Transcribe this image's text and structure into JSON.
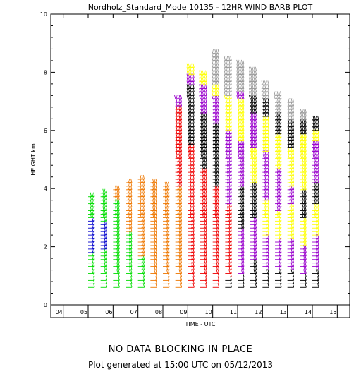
{
  "chart_data": {
    "type": "scatter",
    "title": "Nordholz_Standard_Mode 10135 - 12HR WIND BARB PLOT",
    "xlabel": "TIME - UTC",
    "ylabel": "HEIGHT km",
    "xlim": [
      3.5,
      15.5
    ],
    "ylim": [
      0,
      10
    ],
    "x_ticks": [
      "04",
      "05",
      "06",
      "07",
      "08",
      "09",
      "10",
      "11",
      "12",
      "13",
      "14",
      "15"
    ],
    "y_ticks": [
      "0",
      "2",
      "4",
      "6",
      "8",
      "10"
    ],
    "colors": {
      "green": "#00dd00",
      "blue": "#0000cc",
      "orange": "#ee7700",
      "red": "#ee0000",
      "black": "#000000",
      "purple": "#9900cc",
      "yellow": "#ffff00",
      "gray": "#999999"
    },
    "profiles": [
      {
        "t": 5.0,
        "bottom": 0.6,
        "top": 3.8,
        "color_bands": [
          [
            0.6,
            "green"
          ],
          [
            1.8,
            "blue"
          ],
          [
            3.0,
            "green"
          ]
        ]
      },
      {
        "t": 5.5,
        "bottom": 0.6,
        "top": 3.9,
        "color_bands": [
          [
            0.6,
            "green"
          ],
          [
            1.9,
            "blue"
          ],
          [
            2.8,
            "green"
          ]
        ]
      },
      {
        "t": 6.0,
        "bottom": 0.6,
        "top": 4.0,
        "color_bands": [
          [
            0.6,
            "green"
          ],
          [
            3.5,
            "orange"
          ]
        ]
      },
      {
        "t": 6.5,
        "bottom": 0.6,
        "top": 4.3,
        "color_bands": [
          [
            0.6,
            "green"
          ],
          [
            2.5,
            "orange"
          ]
        ]
      },
      {
        "t": 7.0,
        "bottom": 0.6,
        "top": 4.4,
        "color_bands": [
          [
            0.6,
            "green"
          ],
          [
            1.6,
            "orange"
          ]
        ]
      },
      {
        "t": 7.5,
        "bottom": 0.6,
        "top": 4.2,
        "color_bands": [
          [
            0.6,
            "orange"
          ]
        ]
      },
      {
        "t": 8.0,
        "bottom": 0.6,
        "top": 4.1,
        "color_bands": [
          [
            0.6,
            "orange"
          ]
        ]
      },
      {
        "t": 8.5,
        "bottom": 0.6,
        "top": 7.1,
        "color_bands": [
          [
            0.6,
            "orange"
          ],
          [
            4.0,
            "red"
          ],
          [
            6.8,
            "purple"
          ]
        ]
      },
      {
        "t": 9.0,
        "bottom": 0.6,
        "top": 8.2,
        "color_bands": [
          [
            0.6,
            "red"
          ],
          [
            5.5,
            "black"
          ],
          [
            7.5,
            "purple"
          ],
          [
            7.9,
            "yellow"
          ]
        ]
      },
      {
        "t": 9.5,
        "bottom": 0.6,
        "top": 8.0,
        "color_bands": [
          [
            0.6,
            "red"
          ],
          [
            4.6,
            "black"
          ],
          [
            6.6,
            "purple"
          ],
          [
            7.5,
            "yellow"
          ]
        ]
      },
      {
        "t": 10.0,
        "bottom": 0.6,
        "top": 8.7,
        "color_bands": [
          [
            0.6,
            "red"
          ],
          [
            4.0,
            "black"
          ],
          [
            6.2,
            "purple"
          ],
          [
            7.2,
            "yellow"
          ],
          [
            7.5,
            "gray"
          ]
        ]
      },
      {
        "t": 10.5,
        "bottom": 0.6,
        "top": 8.5,
        "color_bands": [
          [
            0.6,
            "black"
          ],
          [
            0.9,
            "red"
          ],
          [
            3.4,
            "purple"
          ],
          [
            6.0,
            "yellow"
          ],
          [
            7.1,
            "gray"
          ]
        ]
      },
      {
        "t": 11.0,
        "bottom": 0.6,
        "top": 8.3,
        "color_bands": [
          [
            0.6,
            "black"
          ],
          [
            1.0,
            "purple"
          ],
          [
            2.6,
            "black"
          ],
          [
            4.0,
            "purple"
          ],
          [
            5.6,
            "yellow"
          ],
          [
            7.0,
            "purple"
          ],
          [
            7.3,
            "gray"
          ]
        ]
      },
      {
        "t": 11.5,
        "bottom": 0.6,
        "top": 8.1,
        "color_bands": [
          [
            0.6,
            "black"
          ],
          [
            1.5,
            "purple"
          ],
          [
            3.0,
            "black"
          ],
          [
            4.1,
            "yellow"
          ],
          [
            5.3,
            "purple"
          ],
          [
            6.6,
            "black"
          ],
          [
            7.2,
            "gray"
          ]
        ]
      },
      {
        "t": 12.0,
        "bottom": 0.6,
        "top": 7.6,
        "color_bands": [
          [
            0.6,
            "black"
          ],
          [
            1.2,
            "purple"
          ],
          [
            2.4,
            "yellow"
          ],
          [
            3.6,
            "purple"
          ],
          [
            5.2,
            "yellow"
          ],
          [
            6.4,
            "black"
          ],
          [
            7.0,
            "gray"
          ]
        ]
      },
      {
        "t": 12.5,
        "bottom": 0.6,
        "top": 7.3,
        "color_bands": [
          [
            0.6,
            "black"
          ],
          [
            1.2,
            "purple"
          ],
          [
            2.2,
            "yellow"
          ],
          [
            3.2,
            "purple"
          ],
          [
            4.6,
            "yellow"
          ],
          [
            5.8,
            "black"
          ],
          [
            6.6,
            "gray"
          ]
        ]
      },
      {
        "t": 13.0,
        "bottom": 0.6,
        "top": 7.0,
        "color_bands": [
          [
            0.6,
            "black"
          ],
          [
            1.1,
            "purple"
          ],
          [
            2.2,
            "yellow"
          ],
          [
            3.4,
            "purple"
          ],
          [
            4.0,
            "yellow"
          ],
          [
            5.4,
            "black"
          ],
          [
            6.3,
            "gray"
          ]
        ]
      },
      {
        "t": 13.5,
        "bottom": 0.6,
        "top": 6.6,
        "color_bands": [
          [
            0.6,
            "black"
          ],
          [
            1.0,
            "purple"
          ],
          [
            2.0,
            "yellow"
          ],
          [
            3.0,
            "black"
          ],
          [
            3.9,
            "yellow"
          ],
          [
            5.8,
            "black"
          ],
          [
            6.3,
            "gray"
          ]
        ]
      },
      {
        "t": 14.0,
        "bottom": 0.6,
        "top": 6.4,
        "color_bands": [
          [
            0.6,
            "black"
          ],
          [
            1.2,
            "purple"
          ],
          [
            2.4,
            "yellow"
          ],
          [
            3.4,
            "black"
          ],
          [
            4.2,
            "purple"
          ],
          [
            5.6,
            "yellow"
          ],
          [
            6.0,
            "black"
          ]
        ]
      }
    ]
  },
  "footer": {
    "status_text": "NO DATA BLOCKING IN PLACE",
    "generated_text": "Plot generated at 15:00 UTC on 05/12/2013"
  }
}
